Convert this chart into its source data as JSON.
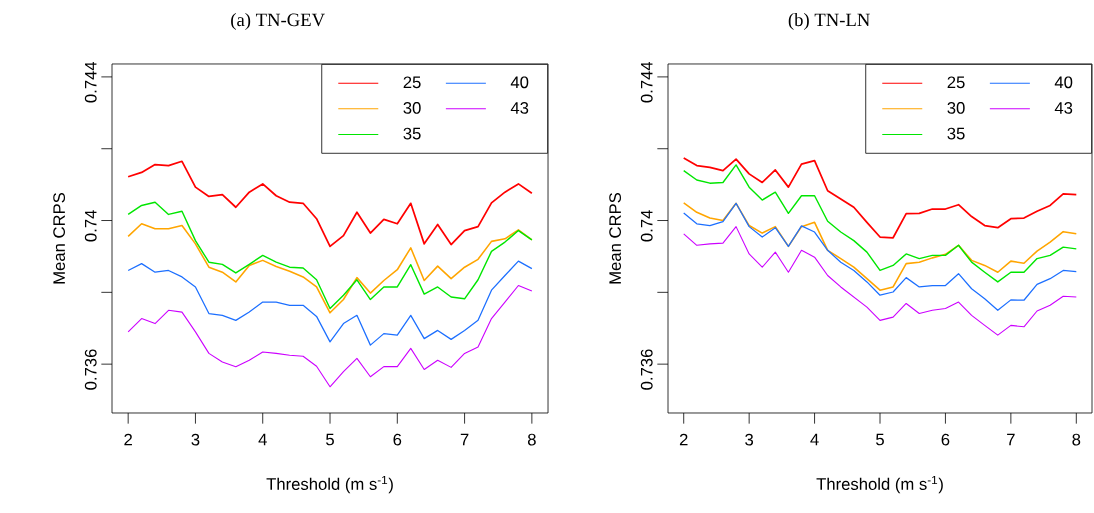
{
  "chart_data": [
    {
      "type": "line",
      "title": "(a) TN-GEV",
      "xlabel": "Threshold (m s$^{-1}$)",
      "ylabel": "Mean CRPS",
      "x": [
        2.0,
        2.2,
        2.4,
        2.6,
        2.8,
        3.0,
        3.2,
        3.4,
        3.6,
        3.8,
        4.0,
        4.2,
        4.4,
        4.6,
        4.8,
        5.0,
        5.2,
        5.4,
        5.6,
        5.8,
        6.0,
        6.2,
        6.4,
        6.6,
        6.8,
        7.0,
        7.2,
        7.4,
        7.6,
        7.8,
        8.0
      ],
      "xlim": [
        1.76,
        8.24
      ],
      "ylim": [
        0.73464,
        0.74436
      ],
      "xticks": [
        2,
        3,
        4,
        5,
        6,
        7,
        8
      ],
      "yticks": [
        0.736,
        0.74,
        0.744
      ],
      "legend": "top right",
      "series": [
        {
          "name": "25",
          "color": "#ff0000",
          "values": [
            0.74122,
            0.74134,
            0.74156,
            0.74153,
            0.74165,
            0.74093,
            0.74067,
            0.74072,
            0.74037,
            0.74079,
            0.74102,
            0.74069,
            0.74051,
            0.74048,
            0.74005,
            0.73928,
            0.73958,
            0.74023,
            0.73965,
            0.74003,
            0.73991,
            0.74048,
            0.73935,
            0.73989,
            0.73933,
            0.73972,
            0.73983,
            0.74049,
            0.74079,
            0.74102,
            0.74076
          ]
        },
        {
          "name": "30",
          "color": "#ffa500",
          "values": [
            0.73956,
            0.73991,
            0.73977,
            0.73977,
            0.73986,
            0.73935,
            0.7387,
            0.73856,
            0.73829,
            0.73875,
            0.73889,
            0.73872,
            0.73859,
            0.73843,
            0.73815,
            0.73743,
            0.7378,
            0.73841,
            0.73798,
            0.73833,
            0.73863,
            0.73924,
            0.73833,
            0.73873,
            0.73838,
            0.7387,
            0.73892,
            0.73942,
            0.73949,
            0.73974,
            0.73946
          ]
        },
        {
          "name": "35",
          "color": "#00e600",
          "values": [
            0.74017,
            0.74042,
            0.74051,
            0.74017,
            0.74026,
            0.73944,
            0.73884,
            0.73878,
            0.73854,
            0.73878,
            0.73903,
            0.73884,
            0.7387,
            0.73868,
            0.73835,
            0.73755,
            0.73792,
            0.73835,
            0.7378,
            0.73815,
            0.73815,
            0.73877,
            0.73795,
            0.73815,
            0.73787,
            0.73782,
            0.73835,
            0.73914,
            0.7394,
            0.73972,
            0.73946
          ]
        },
        {
          "name": "40",
          "color": "#1c6fff",
          "values": [
            0.73861,
            0.7388,
            0.73856,
            0.73861,
            0.73843,
            0.73815,
            0.73741,
            0.73736,
            0.73722,
            0.73745,
            0.73773,
            0.73773,
            0.73764,
            0.73764,
            0.73733,
            0.73662,
            0.73713,
            0.73736,
            0.73653,
            0.73685,
            0.73681,
            0.73736,
            0.73671,
            0.73694,
            0.73669,
            0.73694,
            0.73722,
            0.73806,
            0.73847,
            0.73887,
            0.73866
          ]
        },
        {
          "name": "43",
          "color": "#cc00ff",
          "values": [
            0.7369,
            0.73727,
            0.73713,
            0.7375,
            0.73745,
            0.7369,
            0.7363,
            0.73606,
            0.73593,
            0.73611,
            0.73634,
            0.7363,
            0.73625,
            0.73622,
            0.73594,
            0.73537,
            0.73579,
            0.73616,
            0.73565,
            0.73593,
            0.73593,
            0.73644,
            0.73585,
            0.73611,
            0.73591,
            0.7363,
            0.73648,
            0.73727,
            0.73773,
            0.73819,
            0.73804
          ]
        }
      ]
    },
    {
      "type": "line",
      "title": "(b) TN-LN",
      "xlabel": "Threshold (m s$^{-1}$)",
      "ylabel": "Mean CRPS",
      "x": [
        2.0,
        2.2,
        2.4,
        2.6,
        2.8,
        3.0,
        3.2,
        3.4,
        3.6,
        3.8,
        4.0,
        4.2,
        4.4,
        4.6,
        4.8,
        5.0,
        5.2,
        5.4,
        5.6,
        5.8,
        6.0,
        6.2,
        6.4,
        6.6,
        6.8,
        7.0,
        7.2,
        7.4,
        7.6,
        7.8,
        8.0
      ],
      "xlim": [
        1.76,
        8.24
      ],
      "ylim": [
        0.73464,
        0.74436
      ],
      "xticks": [
        2,
        3,
        4,
        5,
        6,
        7,
        8
      ],
      "yticks": [
        0.736,
        0.74,
        0.744
      ],
      "legend": "top right",
      "series": [
        {
          "name": "25",
          "color": "#ff0000",
          "values": [
            0.74174,
            0.74153,
            0.74148,
            0.74139,
            0.74171,
            0.7413,
            0.74106,
            0.74141,
            0.74093,
            0.74157,
            0.74167,
            0.74083,
            0.7406,
            0.74037,
            0.73995,
            0.73954,
            0.73952,
            0.74019,
            0.7402,
            0.74032,
            0.74032,
            0.74044,
            0.74011,
            0.73986,
            0.7398,
            0.74005,
            0.74007,
            0.74026,
            0.74042,
            0.74074,
            0.74072
          ]
        },
        {
          "name": "30",
          "color": "#ffa500",
          "values": [
            0.74049,
            0.74023,
            0.74007,
            0.74,
            0.74048,
            0.73986,
            0.73965,
            0.73983,
            0.73928,
            0.73983,
            0.73995,
            0.73917,
            0.73894,
            0.7387,
            0.73838,
            0.73806,
            0.73815,
            0.7388,
            0.73884,
            0.73896,
            0.73906,
            0.73931,
            0.73889,
            0.73875,
            0.73856,
            0.73887,
            0.73881,
            0.73915,
            0.7394,
            0.73969,
            0.73963
          ]
        },
        {
          "name": "35",
          "color": "#00e600",
          "values": [
            0.74139,
            0.74113,
            0.74104,
            0.74106,
            0.74155,
            0.74093,
            0.74057,
            0.74079,
            0.7402,
            0.74069,
            0.74069,
            0.73998,
            0.73968,
            0.73944,
            0.73912,
            0.73861,
            0.73875,
            0.73907,
            0.73894,
            0.73903,
            0.73903,
            0.73931,
            0.73884,
            0.73856,
            0.73829,
            0.73856,
            0.73856,
            0.73894,
            0.73903,
            0.73926,
            0.73921
          ]
        },
        {
          "name": "40",
          "color": "#1c6fff",
          "values": [
            0.74021,
            0.73991,
            0.73986,
            0.73997,
            0.74048,
            0.73983,
            0.73954,
            0.7398,
            0.73928,
            0.73985,
            0.73968,
            0.73917,
            0.73884,
            0.73861,
            0.73829,
            0.73792,
            0.73801,
            0.73841,
            0.73815,
            0.73819,
            0.73819,
            0.73852,
            0.7381,
            0.73782,
            0.7375,
            0.73779,
            0.73778,
            0.73822,
            0.73838,
            0.73861,
            0.73858
          ]
        },
        {
          "name": "43",
          "color": "#cc00ff",
          "values": [
            0.73963,
            0.73931,
            0.73935,
            0.73937,
            0.73983,
            0.73907,
            0.7387,
            0.73912,
            0.73856,
            0.73917,
            0.73898,
            0.73847,
            0.73815,
            0.73787,
            0.73759,
            0.73722,
            0.73731,
            0.73769,
            0.73741,
            0.7375,
            0.73755,
            0.73773,
            0.73736,
            0.73708,
            0.73681,
            0.73708,
            0.73704,
            0.73748,
            0.73764,
            0.73789,
            0.73787
          ]
        }
      ]
    }
  ]
}
